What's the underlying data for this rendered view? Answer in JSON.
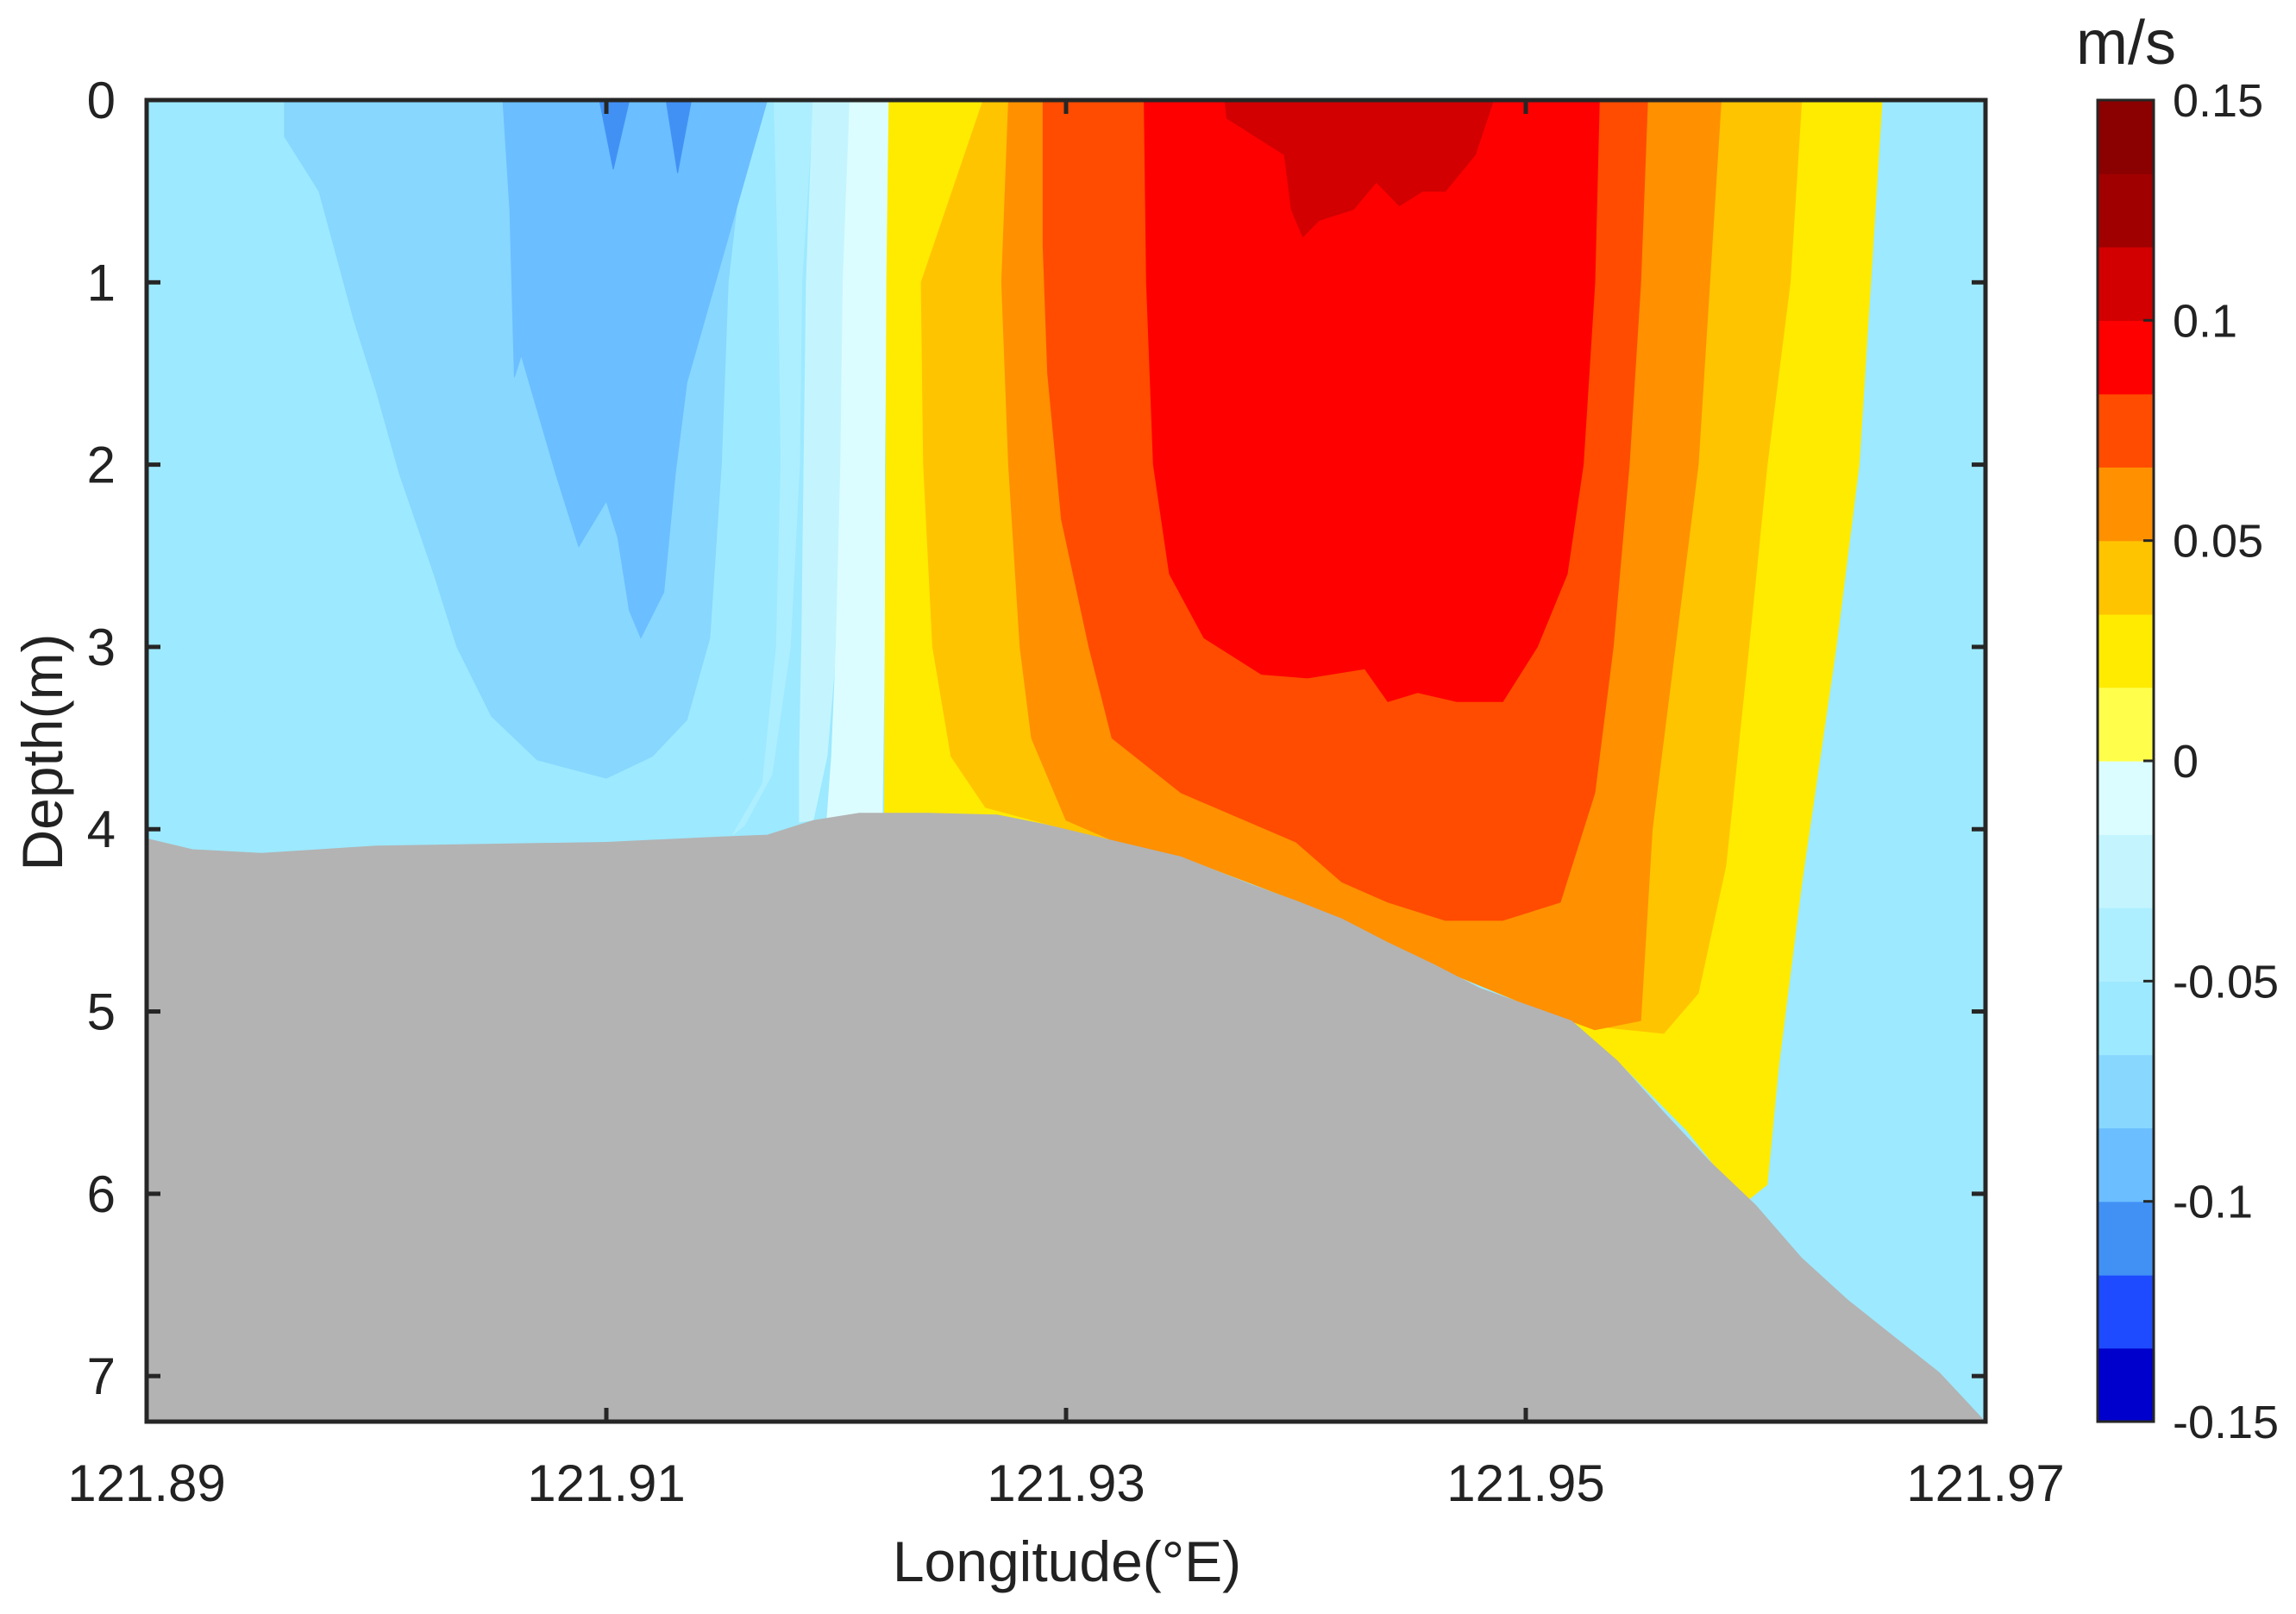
{
  "chart_data": {
    "type": "heatmap",
    "xlabel": "Longitude(°E)",
    "ylabel": "Depth(m)",
    "colorbar_title": "m/s",
    "xlim": [
      121.89,
      121.97
    ],
    "ylim": [
      0,
      7.25
    ],
    "y_inverted": true,
    "x_ticks": [
      {
        "value": 121.89,
        "label": "121.89"
      },
      {
        "value": 121.91,
        "label": "121.91"
      },
      {
        "value": 121.93,
        "label": "121.93"
      },
      {
        "value": 121.95,
        "label": "121.95"
      },
      {
        "value": 121.97,
        "label": "121.97"
      }
    ],
    "y_ticks": [
      {
        "value": 0,
        "label": "0"
      },
      {
        "value": 1,
        "label": "1"
      },
      {
        "value": 2,
        "label": "2"
      },
      {
        "value": 3,
        "label": "3"
      },
      {
        "value": 4,
        "label": "4"
      },
      {
        "value": 5,
        "label": "5"
      },
      {
        "value": 6,
        "label": "6"
      },
      {
        "value": 7,
        "label": "7"
      }
    ],
    "colorbar": {
      "range": [
        -0.15,
        0.15
      ],
      "levels": [
        {
          "from": -0.15,
          "to": -0.1333,
          "color": "#0000CD"
        },
        {
          "from": -0.1333,
          "to": -0.1167,
          "color": "#1E4BFF"
        },
        {
          "from": -0.1167,
          "to": -0.1,
          "color": "#4191F5"
        },
        {
          "from": -0.1,
          "to": -0.0833,
          "color": "#6BBEFF"
        },
        {
          "from": -0.0833,
          "to": -0.0667,
          "color": "#87D7FF"
        },
        {
          "from": -0.0667,
          "to": -0.05,
          "color": "#9DE9FF"
        },
        {
          "from": -0.05,
          "to": -0.0333,
          "color": "#AEEFFF"
        },
        {
          "from": -0.0333,
          "to": -0.0167,
          "color": "#C4F5FF"
        },
        {
          "from": -0.0167,
          "to": 0,
          "color": "#DCFDFF"
        },
        {
          "from": 0,
          "to": 0.0167,
          "color": "#FFFF4B"
        },
        {
          "from": 0.0167,
          "to": 0.0333,
          "color": "#FFEB00"
        },
        {
          "from": 0.0333,
          "to": 0.05,
          "color": "#FFC400"
        },
        {
          "from": 0.05,
          "to": 0.0667,
          "color": "#FF9000"
        },
        {
          "from": 0.0667,
          "to": 0.0833,
          "color": "#FF4C00"
        },
        {
          "from": 0.0833,
          "to": 0.1,
          "color": "#FF0000"
        },
        {
          "from": 0.1,
          "to": 0.1167,
          "color": "#D20000"
        },
        {
          "from": 0.1167,
          "to": 0.1333,
          "color": "#A00000"
        },
        {
          "from": 0.1333,
          "to": 0.15,
          "color": "#8B0000"
        }
      ],
      "ticks": [
        {
          "value": 0.15,
          "label": "0.15"
        },
        {
          "value": 0.1,
          "label": "0.1"
        },
        {
          "value": 0.05,
          "label": "0.05"
        },
        {
          "value": 0,
          "label": "0"
        },
        {
          "value": -0.05,
          "label": "-0.05"
        },
        {
          "value": -0.1,
          "label": "-0.1"
        },
        {
          "value": -0.15,
          "label": "-0.15"
        }
      ]
    },
    "seabed": {
      "color": "#B3B3B3",
      "profile": [
        [
          121.89,
          4.05
        ],
        [
          121.892,
          4.11
        ],
        [
          121.895,
          4.13
        ],
        [
          121.9,
          4.09
        ],
        [
          121.905,
          4.08
        ],
        [
          121.91,
          4.07
        ],
        [
          121.915,
          4.04
        ],
        [
          121.917,
          4.03
        ],
        [
          121.919,
          3.95
        ],
        [
          121.921,
          3.91
        ],
        [
          121.924,
          3.91
        ],
        [
          121.927,
          3.92
        ],
        [
          121.929,
          3.97
        ],
        [
          121.932,
          4.06
        ],
        [
          121.935,
          4.15
        ],
        [
          121.938,
          4.3
        ],
        [
          121.94,
          4.39
        ],
        [
          121.942,
          4.49
        ],
        [
          121.944,
          4.62
        ],
        [
          121.946,
          4.74
        ],
        [
          121.948,
          4.87
        ],
        [
          121.95,
          4.96
        ],
        [
          121.952,
          5.05
        ],
        [
          121.954,
          5.27
        ],
        [
          121.956,
          5.55
        ],
        [
          121.958,
          5.82
        ],
        [
          121.96,
          6.06
        ],
        [
          121.962,
          6.35
        ],
        [
          121.964,
          6.58
        ],
        [
          121.966,
          6.78
        ],
        [
          121.968,
          6.98
        ],
        [
          121.97,
          7.25
        ]
      ]
    },
    "contour_regions": [
      {
        "level": -0.0667,
        "color": "#9DE9FF",
        "points": [
          [
            121.89,
            0
          ],
          [
            121.919,
            0
          ],
          [
            121.9185,
            1.0
          ],
          [
            121.918,
            2.0
          ],
          [
            121.9175,
            3.0
          ],
          [
            121.916,
            3.6
          ],
          [
            121.913,
            3.95
          ],
          [
            121.91,
            4.0
          ],
          [
            121.9,
            4.0
          ],
          [
            121.896,
            3.7
          ],
          [
            121.893,
            3.3
          ],
          [
            121.891,
            2.9
          ],
          [
            121.89,
            2.6
          ]
        ]
      },
      {
        "level": -0.0833,
        "color": "#87D7FF",
        "points": [
          [
            121.896,
            0
          ],
          [
            121.9162,
            0
          ],
          [
            121.9153,
            1.0
          ],
          [
            121.915,
            2.0
          ],
          [
            121.9145,
            2.95
          ],
          [
            121.9135,
            3.4
          ],
          [
            121.912,
            3.6
          ],
          [
            121.91,
            3.72
          ],
          [
            121.907,
            3.62
          ],
          [
            121.905,
            3.38
          ],
          [
            121.9035,
            3.0
          ],
          [
            121.9025,
            2.6
          ],
          [
            121.901,
            2.05
          ],
          [
            121.9,
            1.6
          ],
          [
            121.899,
            1.2
          ],
          [
            121.8975,
            0.5
          ],
          [
            121.896,
            0.2
          ]
        ]
      },
      {
        "level": -0.1,
        "color": "#6BBEFF",
        "points": [
          [
            121.9055,
            0
          ],
          [
            121.917,
            0
          ],
          [
            121.9135,
            1.55
          ],
          [
            121.913,
            2.05
          ],
          [
            121.9125,
            2.7
          ],
          [
            121.9115,
            2.95
          ],
          [
            121.911,
            2.8
          ],
          [
            121.9105,
            2.4
          ],
          [
            121.91,
            2.2
          ],
          [
            121.9088,
            2.45
          ],
          [
            121.9078,
            2.05
          ],
          [
            121.9063,
            1.4
          ],
          [
            121.906,
            1.52
          ],
          [
            121.9058,
            0.6
          ]
        ]
      },
      {
        "level": -0.1167,
        "color": "#4191F5",
        "points": [
          [
            121.9097,
            0
          ],
          [
            121.911,
            0
          ],
          [
            121.9103,
            0.38
          ]
        ]
      },
      {
        "level": -0.1167,
        "color": "#4191F5",
        "points": [
          [
            121.9126,
            0
          ],
          [
            121.9137,
            0
          ],
          [
            121.9131,
            0.4
          ]
        ]
      },
      {
        "level": -0.05,
        "color": "#AEEFFF",
        "points": [
          [
            121.9173,
            0
          ],
          [
            121.919,
            0
          ],
          [
            121.9185,
            1.0
          ],
          [
            121.9184,
            2.0
          ],
          [
            121.918,
            3.0
          ],
          [
            121.9172,
            3.7
          ],
          [
            121.916,
            3.98
          ],
          [
            121.9155,
            4.03
          ],
          [
            121.9168,
            3.75
          ],
          [
            121.9174,
            3.0
          ],
          [
            121.9176,
            2.0
          ],
          [
            121.9175,
            1.0
          ]
        ]
      },
      {
        "level": -0.0333,
        "color": "#C4F5FF",
        "points": [
          [
            121.919,
            0
          ],
          [
            121.9206,
            0
          ],
          [
            121.9203,
            1.0
          ],
          [
            121.9202,
            2.0
          ],
          [
            121.92,
            3.0
          ],
          [
            121.9196,
            3.6
          ],
          [
            121.919,
            3.95
          ],
          [
            121.9184,
            3.96
          ],
          [
            121.9184,
            3.6
          ],
          [
            121.9185,
            3.0
          ],
          [
            121.9186,
            2.0
          ],
          [
            121.9187,
            1.0
          ]
        ]
      },
      {
        "level": -0.0167,
        "color": "#DCFDFF",
        "points": [
          [
            121.9206,
            0
          ],
          [
            121.9223,
            0
          ],
          [
            121.9222,
            1.0
          ],
          [
            121.9221,
            2.0
          ],
          [
            121.9221,
            3.0
          ],
          [
            121.922,
            3.91
          ],
          [
            121.9196,
            3.95
          ],
          [
            121.9198,
            3.6
          ],
          [
            121.92,
            3.0
          ],
          [
            121.9202,
            2.0
          ],
          [
            121.9203,
            1.0
          ]
        ]
      },
      {
        "level": 0.0167,
        "color": "#FFEB00",
        "points": [
          [
            121.9223,
            0
          ],
          [
            121.9655,
            0
          ],
          [
            121.965,
            1.0
          ],
          [
            121.9645,
            2.0
          ],
          [
            121.9635,
            3.0
          ],
          [
            121.962,
            4.3
          ],
          [
            121.961,
            5.3
          ],
          [
            121.9605,
            5.95
          ],
          [
            121.9595,
            6.05
          ],
          [
            121.957,
            5.65
          ],
          [
            121.954,
            5.27
          ],
          [
            121.95,
            4.96
          ],
          [
            121.945,
            4.7
          ],
          [
            121.94,
            4.39
          ],
          [
            121.935,
            4.15
          ],
          [
            121.93,
            4.0
          ],
          [
            121.927,
            3.92
          ],
          [
            121.924,
            3.91
          ],
          [
            121.9221,
            3.91
          ],
          [
            121.9222,
            1.0
          ]
        ]
      },
      {
        "level": 0.0333,
        "color": "#FFC400",
        "points": [
          [
            121.9264,
            0
          ],
          [
            121.962,
            0
          ],
          [
            121.9615,
            1.0
          ],
          [
            121.9605,
            2.0
          ],
          [
            121.9597,
            3.0
          ],
          [
            121.9587,
            4.2
          ],
          [
            121.9575,
            4.9
          ],
          [
            121.956,
            5.12
          ],
          [
            121.953,
            5.08
          ],
          [
            121.95,
            4.96
          ],
          [
            121.945,
            4.7
          ],
          [
            121.94,
            4.39
          ],
          [
            121.935,
            4.15
          ],
          [
            121.93,
            4.0
          ],
          [
            121.9265,
            3.88
          ],
          [
            121.925,
            3.6
          ],
          [
            121.9242,
            3.0
          ],
          [
            121.9238,
            2.0
          ],
          [
            121.9237,
            1.0
          ]
        ]
      },
      {
        "level": 0.05,
        "color": "#FF9000",
        "points": [
          [
            121.9275,
            0
          ],
          [
            121.9585,
            0
          ],
          [
            121.958,
            1.0
          ],
          [
            121.9575,
            2.0
          ],
          [
            121.9565,
            3.0
          ],
          [
            121.9555,
            4.0
          ],
          [
            121.955,
            5.05
          ],
          [
            121.953,
            5.1
          ],
          [
            121.95,
            4.96
          ],
          [
            121.945,
            4.7
          ],
          [
            121.94,
            4.39
          ],
          [
            121.935,
            4.15
          ],
          [
            121.932,
            4.06
          ],
          [
            121.93,
            3.95
          ],
          [
            121.9285,
            3.5
          ],
          [
            121.928,
            3.0
          ],
          [
            121.9275,
            2.0
          ],
          [
            121.9272,
            1.0
          ]
        ]
      },
      {
        "level": 0.0667,
        "color": "#FF4C00",
        "points": [
          [
            121.929,
            0
          ],
          [
            121.9553,
            0
          ],
          [
            121.955,
            1.0
          ],
          [
            121.9545,
            2.0
          ],
          [
            121.9538,
            3.0
          ],
          [
            121.953,
            3.8
          ],
          [
            121.9515,
            4.4
          ],
          [
            121.949,
            4.5
          ],
          [
            121.9465,
            4.5
          ],
          [
            121.944,
            4.4
          ],
          [
            121.942,
            4.29
          ],
          [
            121.94,
            4.07
          ],
          [
            121.935,
            3.8
          ],
          [
            121.932,
            3.5
          ],
          [
            121.931,
            3.0
          ],
          [
            121.9298,
            2.3
          ],
          [
            121.9292,
            1.5
          ],
          [
            121.929,
            0.8
          ]
        ]
      },
      {
        "level": 0.0833,
        "color": "#FF0000",
        "points": [
          [
            121.9334,
            0
          ],
          [
            121.9532,
            0
          ],
          [
            121.953,
            1.0
          ],
          [
            121.9525,
            2.0
          ],
          [
            121.9518,
            2.6
          ],
          [
            121.9505,
            3.0
          ],
          [
            121.949,
            3.3
          ],
          [
            121.947,
            3.3
          ],
          [
            121.9453,
            3.25
          ],
          [
            121.944,
            3.3
          ],
          [
            121.943,
            3.12
          ],
          [
            121.9405,
            3.17
          ],
          [
            121.9385,
            3.15
          ],
          [
            121.936,
            2.95
          ],
          [
            121.9345,
            2.6
          ],
          [
            121.9338,
            2.0
          ],
          [
            121.9335,
            1.0
          ]
        ]
      },
      {
        "level": 0.1,
        "color": "#D20000",
        "points": [
          [
            121.9369,
            0
          ],
          [
            121.9486,
            0
          ],
          [
            121.9478,
            0.3
          ],
          [
            121.9465,
            0.5
          ],
          [
            121.9455,
            0.5
          ],
          [
            121.9445,
            0.58
          ],
          [
            121.9435,
            0.45
          ],
          [
            121.9425,
            0.6
          ],
          [
            121.941,
            0.66
          ],
          [
            121.9403,
            0.75
          ],
          [
            121.9398,
            0.6
          ],
          [
            121.9395,
            0.3
          ],
          [
            121.937,
            0.1
          ]
        ]
      }
    ]
  }
}
